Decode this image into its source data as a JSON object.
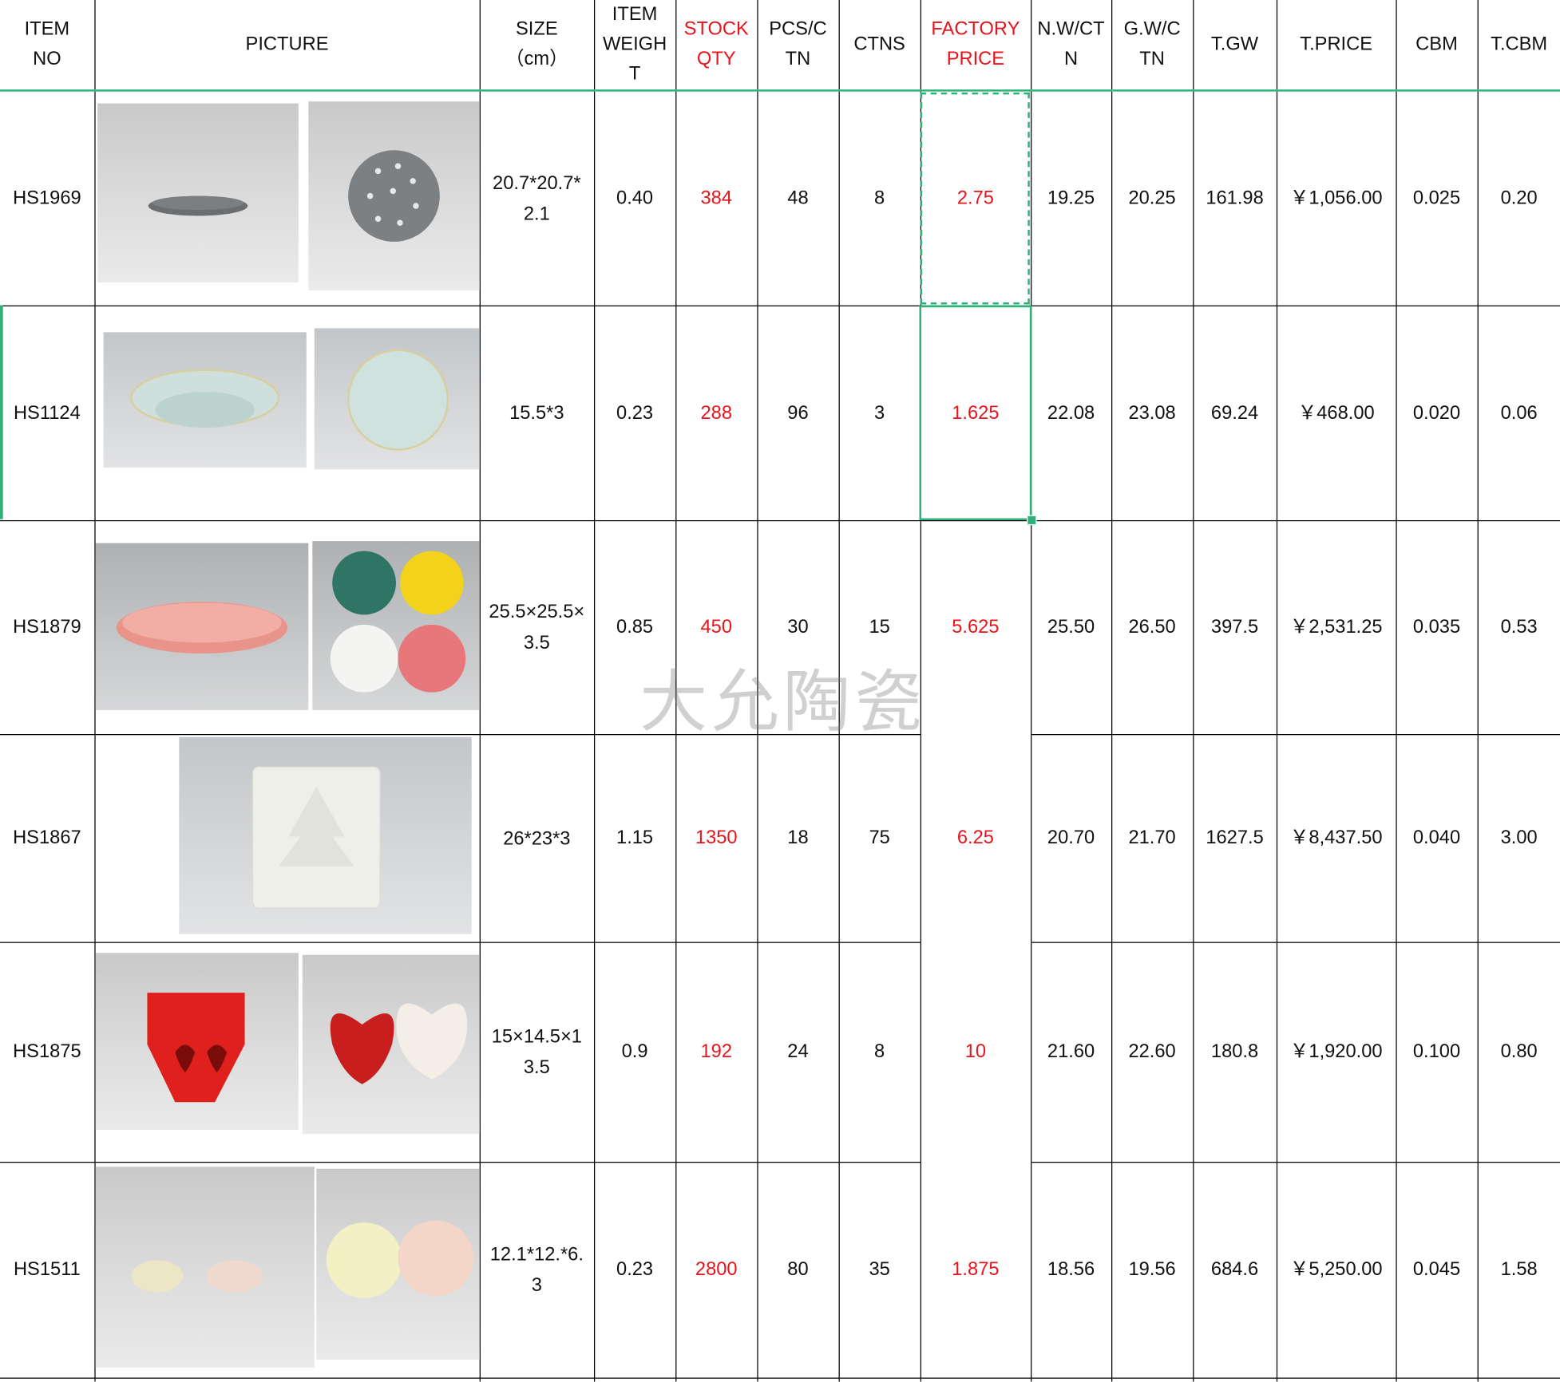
{
  "headers": [
    {
      "l1": "ITEM",
      "l2": "NO",
      "l3": ""
    },
    {
      "l1": "PICTURE",
      "l2": "",
      "l3": ""
    },
    {
      "l1": "SIZE",
      "l2": "（cm）",
      "l3": ""
    },
    {
      "l1": "ITEM",
      "l2": "WEIGH",
      "l3": "T"
    },
    {
      "l1": "STOCK",
      "l2": "QTY",
      "l3": ""
    },
    {
      "l1": "PCS/C",
      "l2": "TN",
      "l3": ""
    },
    {
      "l1": "CTNS",
      "l2": "",
      "l3": ""
    },
    {
      "l1": "FACTORY",
      "l2": "PRICE",
      "l3": ""
    },
    {
      "l1": "N.W/CT",
      "l2": "N",
      "l3": ""
    },
    {
      "l1": "G.W/C",
      "l2": "TN",
      "l3": ""
    },
    {
      "l1": "T.GW",
      "l2": "",
      "l3": ""
    },
    {
      "l1": "T.PRICE",
      "l2": "",
      "l3": ""
    },
    {
      "l1": "CBM",
      "l2": "",
      "l3": ""
    },
    {
      "l1": "T.CBM",
      "l2": "",
      "l3": ""
    }
  ],
  "rows": [
    {
      "item": "HS1969",
      "size": "20.7*20.7*\n2.1",
      "weight": "0.40",
      "stock": "384",
      "pcs": "48",
      "ctns": "8",
      "price": "2.75",
      "nw": "19.25",
      "gw": "20.25",
      "tgw": "161.98",
      "tprice": "￥1,056.00",
      "cbm": "0.025",
      "tcbm": "0.20"
    },
    {
      "item": "HS1124",
      "size": "15.5*3",
      "weight": "0.23",
      "stock": "288",
      "pcs": "96",
      "ctns": "3",
      "price": "1.625",
      "nw": "22.08",
      "gw": "23.08",
      "tgw": "69.24",
      "tprice": "￥468.00",
      "cbm": "0.020",
      "tcbm": "0.06"
    },
    {
      "item": "HS1879",
      "size": "25.5×25.5×\n3.5",
      "weight": "0.85",
      "stock": "450",
      "pcs": "30",
      "ctns": "15",
      "price": "5.625",
      "nw": "25.50",
      "gw": "26.50",
      "tgw": "397.5",
      "tprice": "￥2,531.25",
      "cbm": "0.035",
      "tcbm": "0.53"
    },
    {
      "item": "HS1867",
      "size": "26*23*3",
      "weight": "1.15",
      "stock": "1350",
      "pcs": "18",
      "ctns": "75",
      "price": "6.25",
      "nw": "20.70",
      "gw": "21.70",
      "tgw": "1627.5",
      "tprice": "￥8,437.50",
      "cbm": "0.040",
      "tcbm": "3.00"
    },
    {
      "item": "HS1875",
      "size": "15×14.5×1\n3.5",
      "weight": "0.9",
      "stock": "192",
      "pcs": "24",
      "ctns": "8",
      "price": "10",
      "nw": "21.60",
      "gw": "22.60",
      "tgw": "180.8",
      "tprice": "￥1,920.00",
      "cbm": "0.100",
      "tcbm": "0.80"
    },
    {
      "item": "HS1511",
      "size": "12.1*12.*6.\n3",
      "weight": "0.23",
      "stock": "2800",
      "pcs": "80",
      "ctns": "35",
      "price": "1.875",
      "nw": "18.56",
      "gw": "19.56",
      "tgw": "684.6",
      "tprice": "￥5,250.00",
      "cbm": "0.045",
      "tcbm": "1.58"
    }
  ],
  "watermark": "大允陶瓷",
  "colors": {
    "accent": "#e8141c",
    "selection": "#2db37a"
  }
}
